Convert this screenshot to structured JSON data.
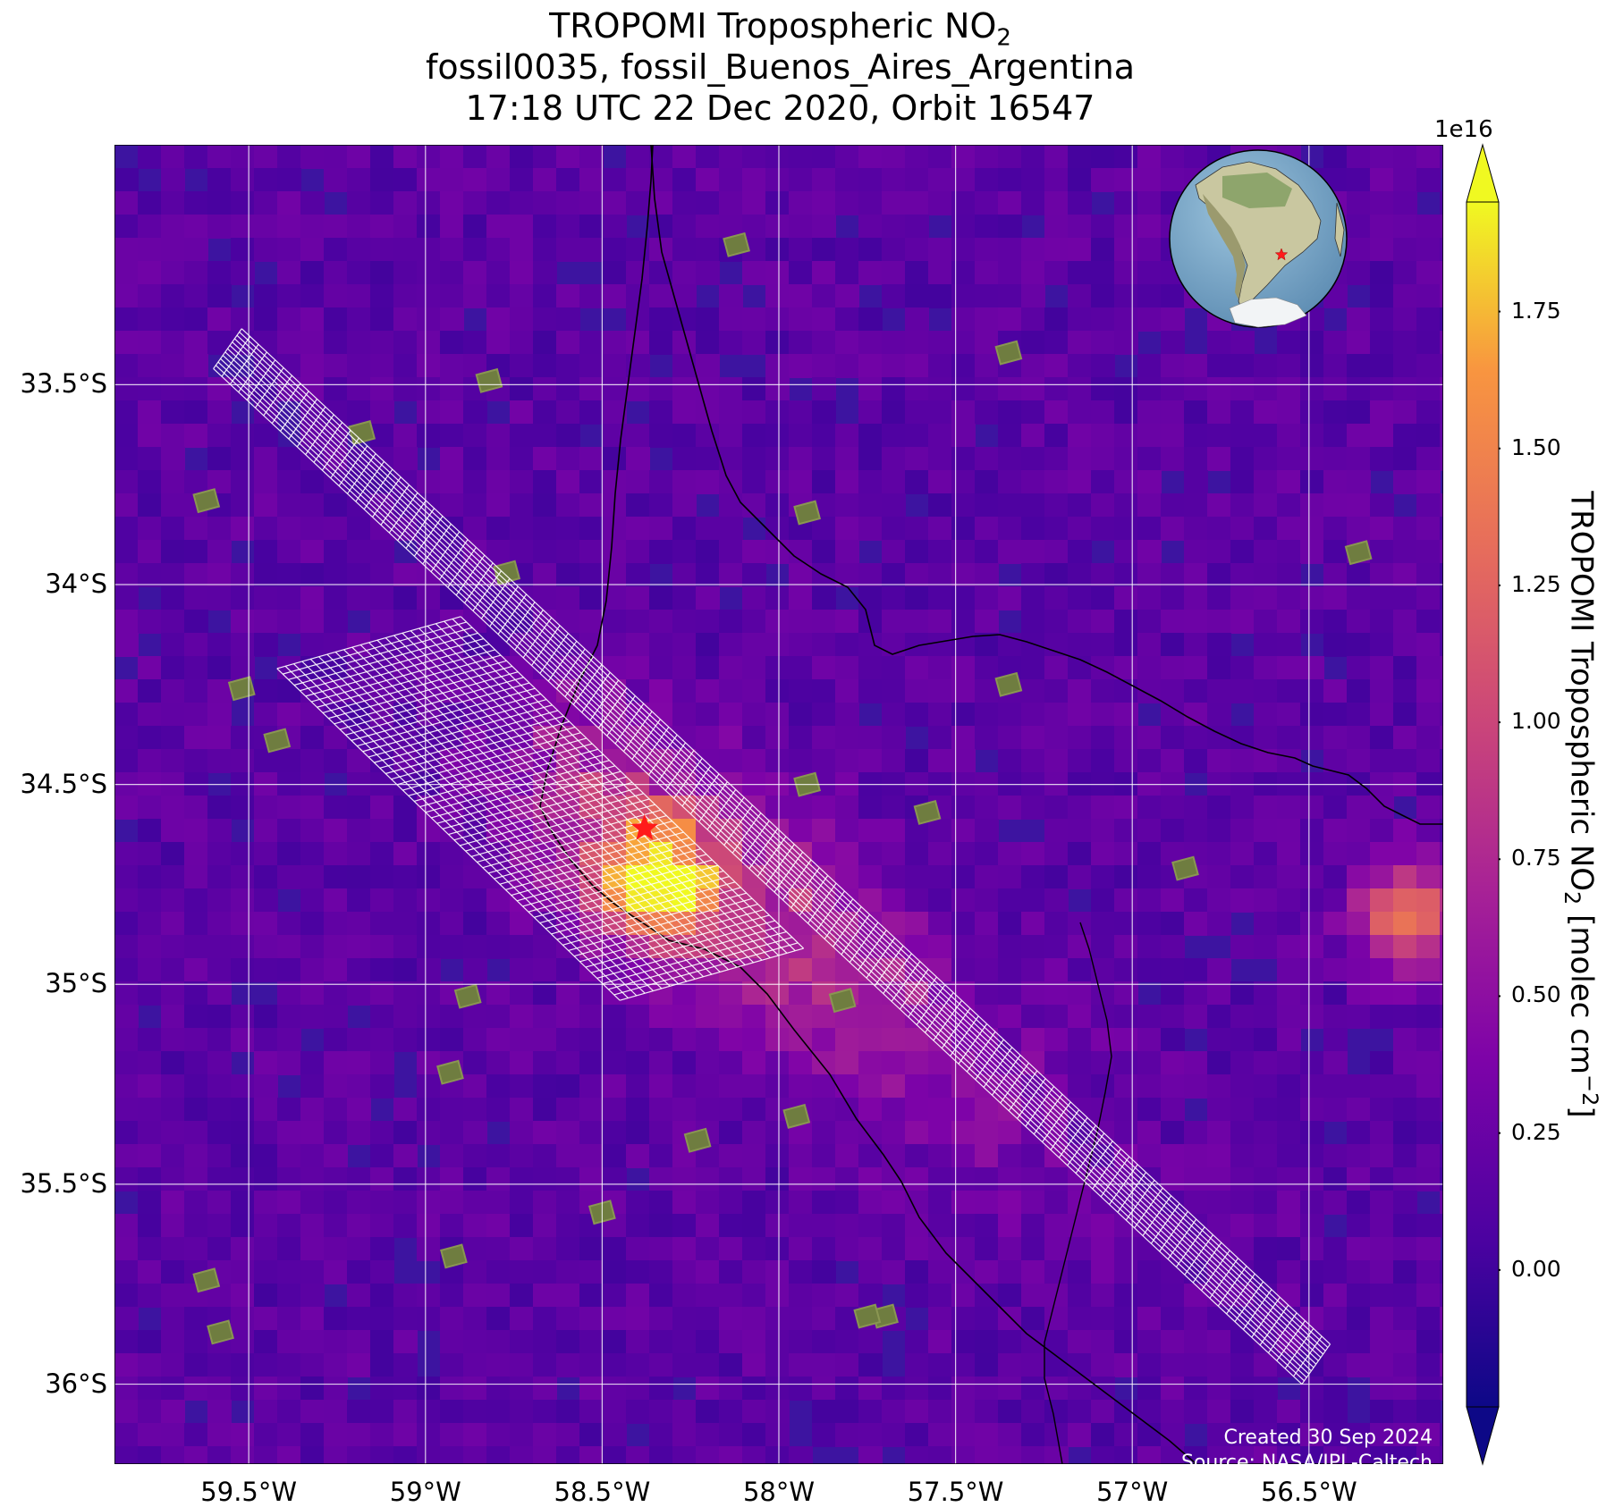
{
  "title": {
    "line1_prefix": "TROPOMI Tropospheric NO",
    "line1_sub": "2",
    "line2": "fossil0035, fossil_Buenos_Aires_Argentina",
    "line3": "17:18 UTC 22 Dec 2020, Orbit 16547"
  },
  "map": {
    "projection": "lat-lon",
    "lon_range": [
      -59.88,
      -56.12
    ],
    "lat_range": [
      -36.2,
      -32.9
    ],
    "lat_ticks": [
      {
        "value": -33.5,
        "label": "33.5°S"
      },
      {
        "value": -34.0,
        "label": "34°S"
      },
      {
        "value": -34.5,
        "label": "34.5°S"
      },
      {
        "value": -35.0,
        "label": "35°S"
      },
      {
        "value": -35.5,
        "label": "35.5°S"
      },
      {
        "value": -36.0,
        "label": "36°S"
      }
    ],
    "lon_ticks": [
      {
        "value": -59.5,
        "label": "59.5°W"
      },
      {
        "value": -59.0,
        "label": "59°W"
      },
      {
        "value": -58.5,
        "label": "58.5°W"
      },
      {
        "value": -58.0,
        "label": "58°W"
      },
      {
        "value": -57.5,
        "label": "57.5°W"
      },
      {
        "value": -57.0,
        "label": "57°W"
      },
      {
        "value": -56.5,
        "label": "56.5°W"
      }
    ],
    "gridlines": true,
    "background_color": "#3d14a0",
    "site_marker": {
      "lon": -58.38,
      "lat": -34.61,
      "color": "#ff1a1a",
      "symbol": "star"
    },
    "footer": {
      "line1": "Created 30 Sep 2024",
      "line2": "Source: NASA/JPL-Caltech"
    },
    "inset": {
      "type": "globe",
      "marker_color": "#ff1a1a"
    }
  },
  "colorbar": {
    "label_prefix": "TROPOMI Tropospheric NO",
    "label_sub": "2",
    "label_mid": " [molec cm",
    "label_sup": "−2",
    "label_suffix": "]",
    "exponent": "1e16",
    "vmin": -0.25,
    "vmax": 1.95,
    "ticks": [
      {
        "value": 0.0,
        "label": "0.00"
      },
      {
        "value": 0.25,
        "label": "0.25"
      },
      {
        "value": 0.5,
        "label": "0.50"
      },
      {
        "value": 0.75,
        "label": "0.75"
      },
      {
        "value": 1.0,
        "label": "1.00"
      },
      {
        "value": 1.25,
        "label": "1.25"
      },
      {
        "value": 1.5,
        "label": "1.50"
      },
      {
        "value": 1.75,
        "label": "1.75"
      }
    ],
    "colormap": "plasma",
    "extend": "both"
  }
}
